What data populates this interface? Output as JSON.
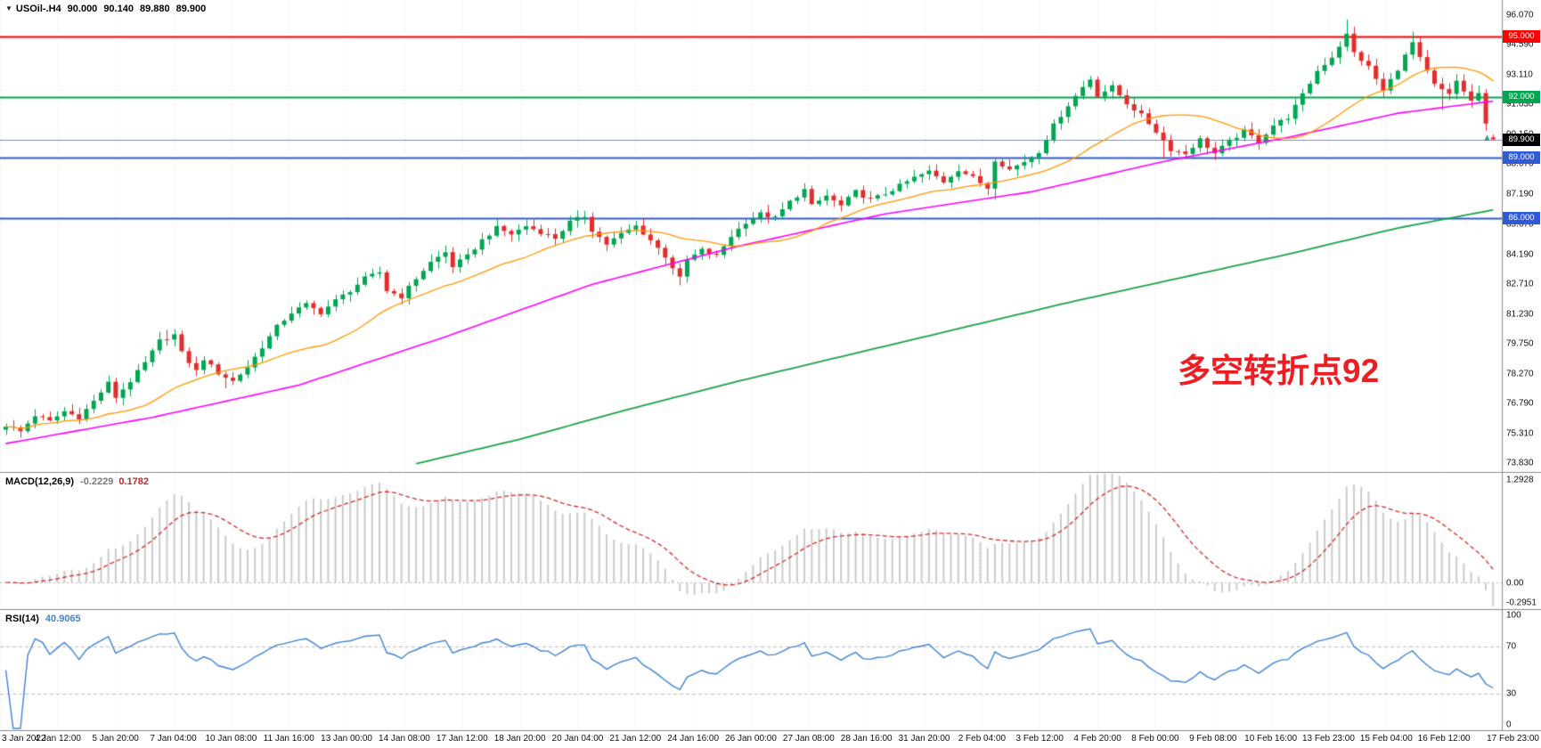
{
  "header": {
    "collapse_icon": "▼",
    "symbol": "USOil-.H4",
    "open": "90.000",
    "high": "90.140",
    "low": "89.880",
    "close": "89.900"
  },
  "annotation": {
    "text": "多空转折点92",
    "color": "#ee1d23"
  },
  "marker": {
    "glyph": "▲",
    "color": "#35a095"
  },
  "chart_data": {
    "type": "candlestick",
    "symbol": "USOil-",
    "timeframe": "H4",
    "quote": {
      "open": 90.0,
      "high": 90.14,
      "low": 89.88,
      "close": 89.9
    },
    "num_candles": 204,
    "price_view_range": [
      73.39,
      96.82
    ],
    "candle_colors": {
      "up": "#00a651",
      "down": "#e22d2d"
    },
    "price_ticks": [
      "96.070",
      "94.590",
      "93.110",
      "91.630",
      "90.150",
      "88.670",
      "87.190",
      "85.670",
      "84.190",
      "82.710",
      "81.230",
      "79.750",
      "78.270",
      "76.790",
      "75.310",
      "73.830"
    ],
    "levels": [
      {
        "label": "95.000",
        "value": 95.0,
        "color": "#ff0000"
      },
      {
        "label": "92.000",
        "value": 92.0,
        "color": "#00a650"
      },
      {
        "label": "89.000",
        "value": 89.0,
        "color": "#2f5bd7"
      },
      {
        "label": "86.000",
        "value": 86.0,
        "color": "#2f5bd7"
      }
    ],
    "current_price": {
      "label": "89.900",
      "value": 89.9,
      "line_color": "#6c8fe0",
      "badge_bg": "#000000"
    },
    "time_labels": [
      "3 Jan 2022",
      "4 Jan 12:00",
      "5 Jan 20:00",
      "7 Jan 04:00",
      "10 Jan 08:00",
      "11 Jan 16:00",
      "13 Jan 00:00",
      "14 Jan 08:00",
      "17 Jan 12:00",
      "18 Jan 20:00",
      "20 Jan 04:00",
      "21 Jan 12:00",
      "24 Jan 16:00",
      "26 Jan 00:00",
      "27 Jan 08:00",
      "28 Jan 16:00",
      "31 Jan 20:00",
      "2 Feb 04:00",
      "3 Feb 12:00",
      "4 Feb 20:00",
      "8 Feb 00:00",
      "9 Feb 08:00",
      "10 Feb 16:00",
      "13 Feb 23:00",
      "15 Feb 04:00",
      "16 Feb 12:00",
      "17 Feb 23:00"
    ],
    "close_anchors": [
      [
        0,
        75.7
      ],
      [
        2,
        75.4
      ],
      [
        4,
        76.2
      ],
      [
        6,
        75.9
      ],
      [
        8,
        76.4
      ],
      [
        10,
        76.1
      ],
      [
        12,
        76.9
      ],
      [
        14,
        77.8
      ],
      [
        15,
        77.1
      ],
      [
        17,
        77.9
      ],
      [
        19,
        78.8
      ],
      [
        21,
        79.9
      ],
      [
        23,
        80.2
      ],
      [
        24,
        79.3
      ],
      [
        26,
        78.4
      ],
      [
        27,
        79.0
      ],
      [
        29,
        78.3
      ],
      [
        31,
        77.9
      ],
      [
        33,
        78.6
      ],
      [
        35,
        79.6
      ],
      [
        37,
        80.6
      ],
      [
        39,
        81.3
      ],
      [
        41,
        81.7
      ],
      [
        43,
        81.3
      ],
      [
        45,
        81.9
      ],
      [
        47,
        82.4
      ],
      [
        49,
        83.0
      ],
      [
        51,
        83.3
      ],
      [
        52,
        82.4
      ],
      [
        54,
        82.1
      ],
      [
        56,
        83.0
      ],
      [
        58,
        83.8
      ],
      [
        60,
        84.3
      ],
      [
        61,
        83.6
      ],
      [
        63,
        84.1
      ],
      [
        65,
        84.9
      ],
      [
        67,
        85.5
      ],
      [
        69,
        85.2
      ],
      [
        71,
        85.6
      ],
      [
        73,
        85.3
      ],
      [
        75,
        85.0
      ],
      [
        77,
        85.8
      ],
      [
        79,
        86.1
      ],
      [
        80,
        85.4
      ],
      [
        82,
        84.7
      ],
      [
        84,
        85.2
      ],
      [
        86,
        85.6
      ],
      [
        88,
        84.9
      ],
      [
        90,
        84.1
      ],
      [
        92,
        83.0
      ],
      [
        93,
        83.9
      ],
      [
        95,
        84.4
      ],
      [
        97,
        84.1
      ],
      [
        99,
        85.1
      ],
      [
        101,
        85.8
      ],
      [
        103,
        86.2
      ],
      [
        105,
        86.0
      ],
      [
        107,
        86.8
      ],
      [
        109,
        87.4
      ],
      [
        110,
        86.6
      ],
      [
        112,
        87.1
      ],
      [
        114,
        86.6
      ],
      [
        116,
        87.3
      ],
      [
        118,
        86.9
      ],
      [
        120,
        87.2
      ],
      [
        122,
        87.6
      ],
      [
        124,
        88.0
      ],
      [
        126,
        88.3
      ],
      [
        128,
        87.8
      ],
      [
        130,
        88.4
      ],
      [
        132,
        88.0
      ],
      [
        134,
        87.5
      ],
      [
        135,
        88.9
      ],
      [
        137,
        88.4
      ],
      [
        139,
        88.8
      ],
      [
        141,
        89.3
      ],
      [
        143,
        90.6
      ],
      [
        145,
        91.6
      ],
      [
        147,
        92.5
      ],
      [
        148,
        92.9
      ],
      [
        149,
        92.1
      ],
      [
        151,
        92.5
      ],
      [
        153,
        91.7
      ],
      [
        155,
        91.1
      ],
      [
        157,
        90.3
      ],
      [
        159,
        89.4
      ],
      [
        161,
        89.2
      ],
      [
        163,
        89.9
      ],
      [
        165,
        89.2
      ],
      [
        167,
        89.8
      ],
      [
        169,
        90.3
      ],
      [
        171,
        89.8
      ],
      [
        173,
        90.6
      ],
      [
        175,
        91.0
      ],
      [
        177,
        92.1
      ],
      [
        179,
        93.3
      ],
      [
        181,
        94.0
      ],
      [
        183,
        95.1
      ],
      [
        184,
        94.2
      ],
      [
        186,
        93.5
      ],
      [
        188,
        92.3
      ],
      [
        190,
        93.4
      ],
      [
        192,
        94.7
      ],
      [
        193,
        93.9
      ],
      [
        195,
        92.6
      ],
      [
        197,
        92.1
      ],
      [
        198,
        92.8
      ],
      [
        200,
        91.8
      ],
      [
        201,
        92.2
      ],
      [
        202,
        90.6
      ],
      [
        203,
        89.9
      ]
    ],
    "wick_overrides": [
      {
        "i": 22,
        "high": 80.45
      },
      {
        "i": 30,
        "low": 77.55
      },
      {
        "i": 79,
        "high": 86.35
      },
      {
        "i": 92,
        "low": 82.65
      },
      {
        "i": 135,
        "low": 86.9
      },
      {
        "i": 148,
        "high": 93.05
      },
      {
        "i": 158,
        "low": 88.95
      },
      {
        "i": 183,
        "high": 95.85
      },
      {
        "i": 184,
        "high": 95.5
      },
      {
        "i": 192,
        "high": 95.25
      },
      {
        "i": 196,
        "low": 91.35
      }
    ],
    "moving_averages": {
      "fast": {
        "type": "sma",
        "period": 20,
        "color": "#ff9800"
      },
      "medium": {
        "color": "#ff00ff",
        "anchors": [
          [
            0,
            74.8
          ],
          [
            20,
            76.1
          ],
          [
            40,
            77.7
          ],
          [
            60,
            80.1
          ],
          [
            80,
            82.7
          ],
          [
            100,
            84.6
          ],
          [
            120,
            86.2
          ],
          [
            140,
            87.3
          ],
          [
            158,
            88.8
          ],
          [
            175,
            90.0
          ],
          [
            190,
            91.2
          ],
          [
            203,
            91.8
          ]
        ]
      },
      "slow": {
        "color": "#1aa34a",
        "anchors": [
          [
            56,
            73.8
          ],
          [
            70,
            75.0
          ],
          [
            85,
            76.5
          ],
          [
            100,
            77.9
          ],
          [
            115,
            79.2
          ],
          [
            130,
            80.5
          ],
          [
            145,
            81.8
          ],
          [
            160,
            83.0
          ],
          [
            175,
            84.2
          ],
          [
            190,
            85.5
          ],
          [
            203,
            86.4
          ]
        ]
      }
    },
    "macd": {
      "label": "MACD(12,26,9)",
      "params": [
        12,
        26,
        9
      ],
      "value_main": "-0.2229",
      "value_signal": "0.1782",
      "scale_top": "1.2928",
      "scale_zero": "0.00",
      "scale_bottom": "-0.2951",
      "histogram_color": "#cbcbcb",
      "signal_color": "#d62b2b"
    },
    "rsi": {
      "label": "RSI(14)",
      "period": 14,
      "value": "40.9065",
      "line_color": "#3f83d6",
      "levels": [
        30,
        70
      ],
      "scale_labels": [
        "100",
        "70",
        "30",
        "0"
      ]
    }
  }
}
